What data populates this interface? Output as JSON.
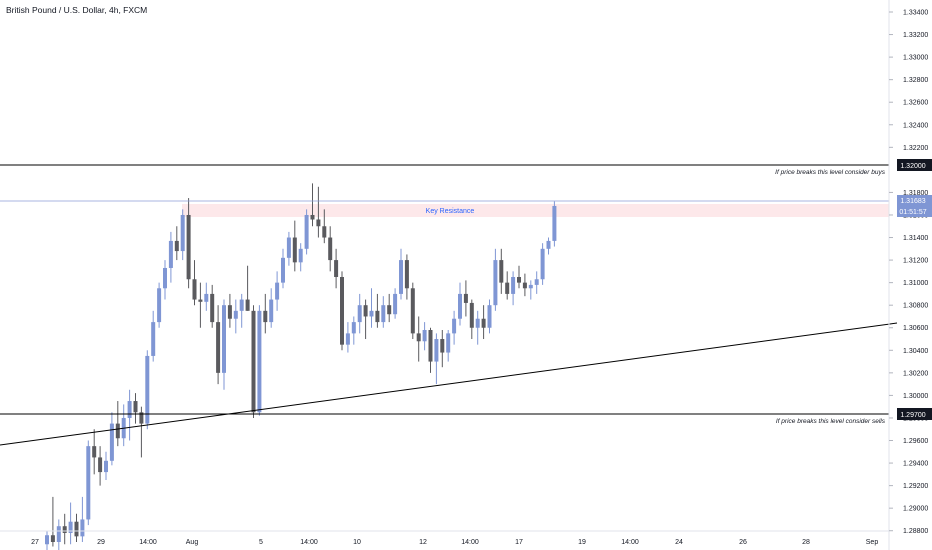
{
  "header": {
    "symbol_title": "British Pound / U.S. Dollar, 4h, FXCM"
  },
  "colors": {
    "background": "#ffffff",
    "up_candle": "#7f96d4",
    "down_candle": "#5a5a5e",
    "resistance_zone": "#fde8ea",
    "resistance_label": "#2962ff",
    "lines": "#000000",
    "price_line": "#8c9bd6",
    "axis_text": "#131722"
  },
  "annotations": {
    "key_resistance": "Key Resistance",
    "buy_note": "If price breaks this level consider buys",
    "sell_note": "If price breaks this level consider sells"
  },
  "price_axis": {
    "current_price": "1.31683",
    "countdown": "01:51:57",
    "level_high": "1.32000",
    "level_low": "1.29700"
  },
  "chart_data": {
    "type": "candlestick",
    "title": "British Pound / U.S. Dollar, 4h, FXCM",
    "ylim": [
      1.2865,
      1.335
    ],
    "y_ticks": [
      "1.28800",
      "1.29000",
      "1.29200",
      "1.29400",
      "1.29600",
      "1.29800",
      "1.30000",
      "1.30200",
      "1.30400",
      "1.30600",
      "1.30800",
      "1.31000",
      "1.31200",
      "1.31400",
      "1.31600",
      "1.31800",
      "1.32200",
      "1.32400",
      "1.32600",
      "1.32800",
      "1.33000",
      "1.33200",
      "1.33400"
    ],
    "x_ticks": [
      "27",
      "29",
      "14:00",
      "Aug",
      "5",
      "14:00",
      "10",
      "12",
      "14:00",
      "17",
      "19",
      "14:00",
      "24",
      "26",
      "28",
      "Sep"
    ],
    "horizontal_levels": [
      1.32,
      1.297
    ],
    "resistance_zone": [
      1.3151,
      1.3166
    ],
    "current_price": 1.31683,
    "trendline": [
      [
        0,
        1.2945
      ],
      [
        165,
        1.3058
      ]
    ],
    "candles": [
      {
        "o": 1.2868,
        "h": 1.288,
        "l": 1.286,
        "c": 1.2876
      },
      {
        "o": 1.2876,
        "h": 1.291,
        "l": 1.2866,
        "c": 1.287
      },
      {
        "o": 1.287,
        "h": 1.289,
        "l": 1.286,
        "c": 1.2884
      },
      {
        "o": 1.2884,
        "h": 1.2895,
        "l": 1.2868,
        "c": 1.2878
      },
      {
        "o": 1.2878,
        "h": 1.2905,
        "l": 1.2868,
        "c": 1.2888
      },
      {
        "o": 1.2888,
        "h": 1.2895,
        "l": 1.287,
        "c": 1.2875
      },
      {
        "o": 1.2875,
        "h": 1.291,
        "l": 1.287,
        "c": 1.289
      },
      {
        "o": 1.289,
        "h": 1.296,
        "l": 1.2885,
        "c": 1.2955
      },
      {
        "o": 1.2955,
        "h": 1.297,
        "l": 1.293,
        "c": 1.2945
      },
      {
        "o": 1.2945,
        "h": 1.2955,
        "l": 1.292,
        "c": 1.2932
      },
      {
        "o": 1.2932,
        "h": 1.295,
        "l": 1.2925,
        "c": 1.2942
      },
      {
        "o": 1.2942,
        "h": 1.2985,
        "l": 1.2938,
        "c": 1.2975
      },
      {
        "o": 1.2975,
        "h": 1.2995,
        "l": 1.2955,
        "c": 1.2962
      },
      {
        "o": 1.2962,
        "h": 1.2992,
        "l": 1.2955,
        "c": 1.298
      },
      {
        "o": 1.298,
        "h": 1.3005,
        "l": 1.296,
        "c": 1.2995
      },
      {
        "o": 1.2995,
        "h": 1.3002,
        "l": 1.2975,
        "c": 1.2985
      },
      {
        "o": 1.2985,
        "h": 1.299,
        "l": 1.2945,
        "c": 1.2975
      },
      {
        "o": 1.2975,
        "h": 1.304,
        "l": 1.297,
        "c": 1.3035
      },
      {
        "o": 1.3035,
        "h": 1.3075,
        "l": 1.303,
        "c": 1.3065
      },
      {
        "o": 1.3065,
        "h": 1.31,
        "l": 1.306,
        "c": 1.3095
      },
      {
        "o": 1.3095,
        "h": 1.312,
        "l": 1.3085,
        "c": 1.3113
      },
      {
        "o": 1.3113,
        "h": 1.3145,
        "l": 1.31,
        "c": 1.3137
      },
      {
        "o": 1.3137,
        "h": 1.315,
        "l": 1.312,
        "c": 1.3128
      },
      {
        "o": 1.3128,
        "h": 1.3165,
        "l": 1.312,
        "c": 1.316
      },
      {
        "o": 1.316,
        "h": 1.3175,
        "l": 1.3095,
        "c": 1.3103
      },
      {
        "o": 1.3103,
        "h": 1.312,
        "l": 1.308,
        "c": 1.3085
      },
      {
        "o": 1.3085,
        "h": 1.31,
        "l": 1.306,
        "c": 1.3083
      },
      {
        "o": 1.3083,
        "h": 1.31,
        "l": 1.3075,
        "c": 1.309
      },
      {
        "o": 1.309,
        "h": 1.3098,
        "l": 1.306,
        "c": 1.3065
      },
      {
        "o": 1.3065,
        "h": 1.308,
        "l": 1.301,
        "c": 1.302
      },
      {
        "o": 1.302,
        "h": 1.3085,
        "l": 1.3005,
        "c": 1.308
      },
      {
        "o": 1.308,
        "h": 1.309,
        "l": 1.306,
        "c": 1.3068
      },
      {
        "o": 1.3068,
        "h": 1.3085,
        "l": 1.3055,
        "c": 1.3075
      },
      {
        "o": 1.3075,
        "h": 1.309,
        "l": 1.306,
        "c": 1.3085
      },
      {
        "o": 1.3085,
        "h": 1.3115,
        "l": 1.3075,
        "c": 1.3075
      },
      {
        "o": 1.3075,
        "h": 1.308,
        "l": 1.298,
        "c": 1.2985
      },
      {
        "o": 1.2985,
        "h": 1.308,
        "l": 1.2982,
        "c": 1.3075
      },
      {
        "o": 1.3075,
        "h": 1.309,
        "l": 1.3055,
        "c": 1.3065
      },
      {
        "o": 1.3065,
        "h": 1.3095,
        "l": 1.306,
        "c": 1.3085
      },
      {
        "o": 1.3085,
        "h": 1.311,
        "l": 1.3075,
        "c": 1.31
      },
      {
        "o": 1.31,
        "h": 1.313,
        "l": 1.3095,
        "c": 1.3122
      },
      {
        "o": 1.3122,
        "h": 1.3145,
        "l": 1.3115,
        "c": 1.314
      },
      {
        "o": 1.314,
        "h": 1.3155,
        "l": 1.311,
        "c": 1.3118
      },
      {
        "o": 1.3118,
        "h": 1.3135,
        "l": 1.311,
        "c": 1.313
      },
      {
        "o": 1.313,
        "h": 1.3165,
        "l": 1.3125,
        "c": 1.316
      },
      {
        "o": 1.316,
        "h": 1.3188,
        "l": 1.315,
        "c": 1.3156
      },
      {
        "o": 1.3156,
        "h": 1.3185,
        "l": 1.314,
        "c": 1.315
      },
      {
        "o": 1.315,
        "h": 1.3165,
        "l": 1.3135,
        "c": 1.314
      },
      {
        "o": 1.314,
        "h": 1.315,
        "l": 1.311,
        "c": 1.312
      },
      {
        "o": 1.312,
        "h": 1.313,
        "l": 1.3095,
        "c": 1.3105
      },
      {
        "o": 1.3105,
        "h": 1.311,
        "l": 1.304,
        "c": 1.3045
      },
      {
        "o": 1.3045,
        "h": 1.3065,
        "l": 1.3038,
        "c": 1.3055
      },
      {
        "o": 1.3055,
        "h": 1.307,
        "l": 1.3045,
        "c": 1.3065
      },
      {
        "o": 1.3065,
        "h": 1.309,
        "l": 1.3055,
        "c": 1.308
      },
      {
        "o": 1.308,
        "h": 1.3085,
        "l": 1.305,
        "c": 1.307
      },
      {
        "o": 1.307,
        "h": 1.3095,
        "l": 1.306,
        "c": 1.3075
      },
      {
        "o": 1.3075,
        "h": 1.309,
        "l": 1.306,
        "c": 1.3065
      },
      {
        "o": 1.3065,
        "h": 1.3088,
        "l": 1.306,
        "c": 1.308
      },
      {
        "o": 1.308,
        "h": 1.309,
        "l": 1.3065,
        "c": 1.3072
      },
      {
        "o": 1.3072,
        "h": 1.3095,
        "l": 1.3068,
        "c": 1.309
      },
      {
        "o": 1.309,
        "h": 1.313,
        "l": 1.3085,
        "c": 1.312
      },
      {
        "o": 1.312,
        "h": 1.3125,
        "l": 1.3085,
        "c": 1.3095
      },
      {
        "o": 1.3095,
        "h": 1.31,
        "l": 1.305,
        "c": 1.3055
      },
      {
        "o": 1.3055,
        "h": 1.307,
        "l": 1.303,
        "c": 1.3048
      },
      {
        "o": 1.3048,
        "h": 1.3065,
        "l": 1.304,
        "c": 1.3058
      },
      {
        "o": 1.3058,
        "h": 1.306,
        "l": 1.302,
        "c": 1.303
      },
      {
        "o": 1.303,
        "h": 1.3055,
        "l": 1.301,
        "c": 1.305
      },
      {
        "o": 1.305,
        "h": 1.3058,
        "l": 1.3025,
        "c": 1.3038
      },
      {
        "o": 1.3038,
        "h": 1.3058,
        "l": 1.303,
        "c": 1.3055
      },
      {
        "o": 1.3055,
        "h": 1.3075,
        "l": 1.3045,
        "c": 1.3068
      },
      {
        "o": 1.3068,
        "h": 1.31,
        "l": 1.3062,
        "c": 1.309
      },
      {
        "o": 1.309,
        "h": 1.3102,
        "l": 1.307,
        "c": 1.3082
      },
      {
        "o": 1.3082,
        "h": 1.3085,
        "l": 1.305,
        "c": 1.306
      },
      {
        "o": 1.306,
        "h": 1.3075,
        "l": 1.3045,
        "c": 1.3068
      },
      {
        "o": 1.3068,
        "h": 1.308,
        "l": 1.305,
        "c": 1.306
      },
      {
        "o": 1.306,
        "h": 1.3085,
        "l": 1.3055,
        "c": 1.308
      },
      {
        "o": 1.308,
        "h": 1.313,
        "l": 1.3075,
        "c": 1.312
      },
      {
        "o": 1.312,
        "h": 1.313,
        "l": 1.309,
        "c": 1.31
      },
      {
        "o": 1.31,
        "h": 1.311,
        "l": 1.3085,
        "c": 1.309
      },
      {
        "o": 1.309,
        "h": 1.311,
        "l": 1.308,
        "c": 1.3105
      },
      {
        "o": 1.3105,
        "h": 1.3115,
        "l": 1.3095,
        "c": 1.31
      },
      {
        "o": 1.31,
        "h": 1.3108,
        "l": 1.3088,
        "c": 1.3095
      },
      {
        "o": 1.3095,
        "h": 1.3102,
        "l": 1.3085,
        "c": 1.3098
      },
      {
        "o": 1.3098,
        "h": 1.311,
        "l": 1.309,
        "c": 1.3103
      },
      {
        "o": 1.3103,
        "h": 1.3135,
        "l": 1.3098,
        "c": 1.313
      },
      {
        "o": 1.313,
        "h": 1.314,
        "l": 1.3125,
        "c": 1.3137
      },
      {
        "o": 1.3137,
        "h": 1.3172,
        "l": 1.3132,
        "c": 1.3168
      }
    ]
  }
}
